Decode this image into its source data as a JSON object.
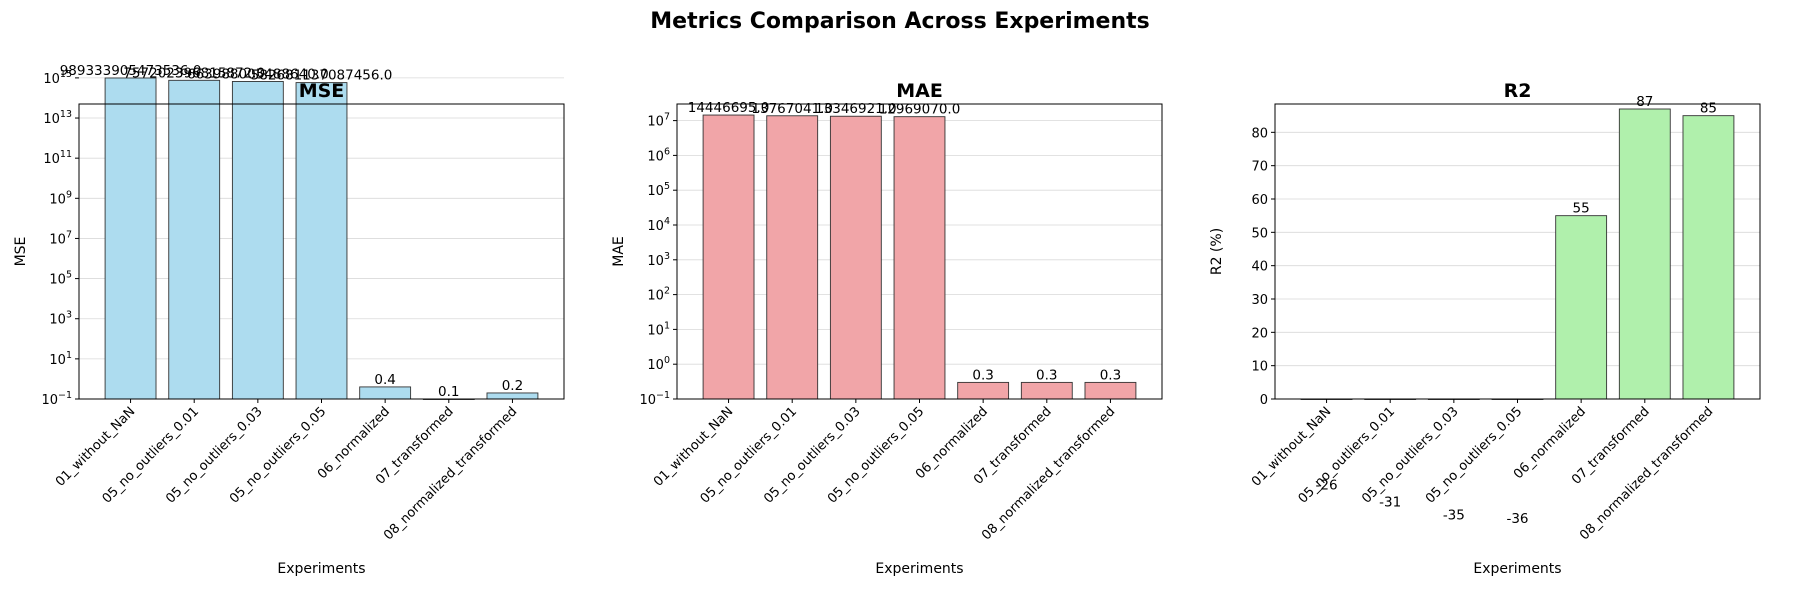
{
  "suptitle": "Metrics Comparison Across Experiments",
  "chart_data": [
    {
      "type": "bar",
      "title": "MSE",
      "xlabel": "Experiments",
      "ylabel": "MSE",
      "yscale": "log",
      "ylim": [
        0.1,
        50000000000000
      ],
      "yticks": [
        0.1,
        10,
        1000,
        100000,
        10000000,
        1000000000,
        100000000000,
        10000000000000,
        1000000000000000
      ],
      "ytick_labels": [
        [
          "10",
          "−1"
        ],
        [
          "10",
          "1"
        ],
        [
          "10",
          "3"
        ],
        [
          "10",
          "5"
        ],
        [
          "10",
          "7"
        ],
        [
          "10",
          "9"
        ],
        [
          "10",
          "11"
        ],
        [
          "10",
          "13"
        ],
        [
          "10",
          "15"
        ]
      ],
      "grid": true,
      "color": "#ADDCEF",
      "categories": [
        "01_without_NaN",
        "05_no_outliers_0.01",
        "05_no_outliers_0.03",
        "05_no_outliers_0.05",
        "06_normalized",
        "07_transformed",
        "08_normalized_transformed"
      ],
      "values": [
        989333905473536.0,
        757202396815872.0,
        663988005488640.0,
        582681137087456.0,
        0.4,
        0.1,
        0.2
      ],
      "value_labels": [
        "989333905473536.0",
        "757202396815872.0",
        "663988005488640.0",
        "582681137087456.0",
        "0.4",
        "0.1",
        "0.2"
      ]
    },
    {
      "type": "bar",
      "title": "MAE",
      "xlabel": "Experiments",
      "ylabel": "MAE",
      "yscale": "log",
      "ylim": [
        0.1,
        30000000
      ],
      "yticks": [
        0.1,
        1,
        10,
        100,
        1000,
        10000,
        100000,
        1000000,
        10000000
      ],
      "ytick_labels": [
        [
          "10",
          "−1"
        ],
        [
          "10",
          "0"
        ],
        [
          "10",
          "1"
        ],
        [
          "10",
          "2"
        ],
        [
          "10",
          "3"
        ],
        [
          "10",
          "4"
        ],
        [
          "10",
          "5"
        ],
        [
          "10",
          "6"
        ],
        [
          "10",
          "7"
        ]
      ],
      "grid": true,
      "color": "#F1A5A8",
      "categories": [
        "01_without_NaN",
        "05_no_outliers_0.01",
        "05_no_outliers_0.03",
        "05_no_outliers_0.05",
        "06_normalized",
        "07_transformed",
        "08_normalized_transformed"
      ],
      "values": [
        14446695.0,
        13767041.0,
        13346921.0,
        12969070.0,
        0.3,
        0.3,
        0.3
      ],
      "value_labels": [
        "14446695.0",
        "13767041.0",
        "13346921.0",
        "12969070.0",
        "0.3",
        "0.3",
        "0.3"
      ]
    },
    {
      "type": "bar",
      "title": "R2",
      "xlabel": "Experiments",
      "ylabel": "R2 (%)",
      "yscale": "linear",
      "ylim": [
        0,
        88.5
      ],
      "yticks": [
        0,
        10,
        20,
        30,
        40,
        50,
        60,
        70,
        80
      ],
      "ytick_labels": [
        [
          "0",
          ""
        ],
        [
          "10",
          ""
        ],
        [
          "20",
          ""
        ],
        [
          "30",
          ""
        ],
        [
          "40",
          ""
        ],
        [
          "50",
          ""
        ],
        [
          "60",
          ""
        ],
        [
          "70",
          ""
        ],
        [
          "80",
          ""
        ]
      ],
      "grid": true,
      "color": "#B0F0AC",
      "categories": [
        "01_without_NaN",
        "05_no_outliers_0.01",
        "05_no_outliers_0.03",
        "05_no_outliers_0.05",
        "06_normalized",
        "07_transformed",
        "08_normalized_transformed"
      ],
      "values": [
        -26,
        -31,
        -35,
        -36,
        55,
        87,
        85
      ],
      "value_labels": [
        "-26",
        "-31",
        "-35",
        "-36",
        "55",
        "87",
        "85"
      ]
    }
  ]
}
